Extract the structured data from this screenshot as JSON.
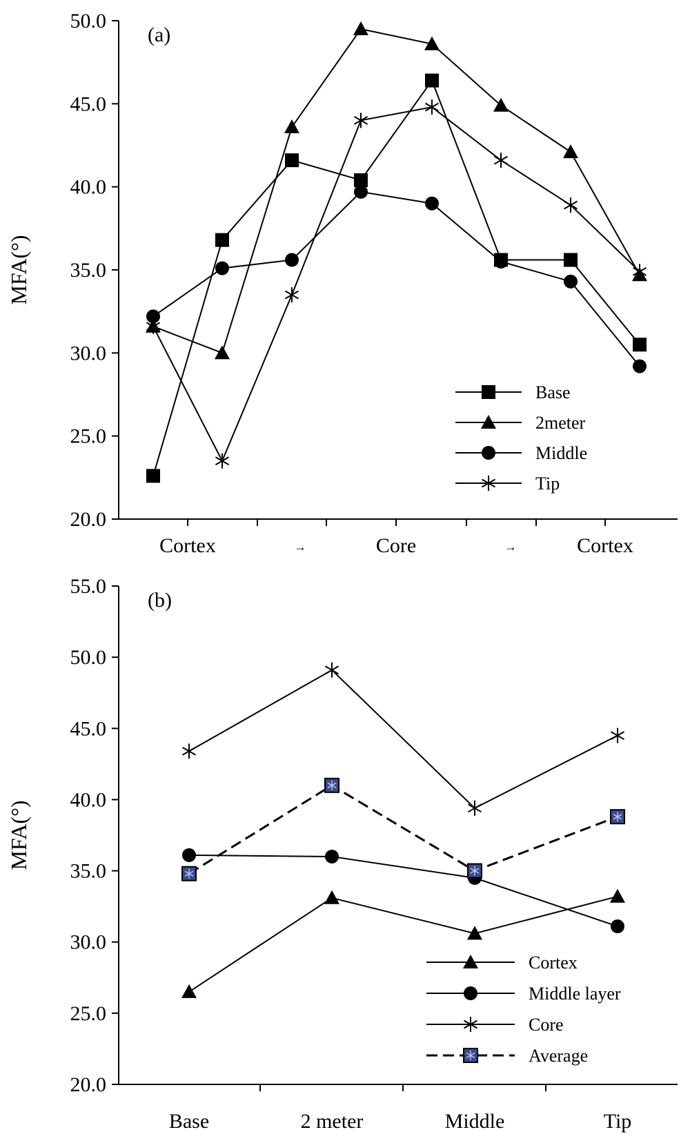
{
  "chart_data": [
    {
      "type": "line",
      "panel_label": "(a)",
      "ylabel": "MFA(°)",
      "ylim": [
        20.0,
        50.0
      ],
      "y_ticks": [
        "20.0",
        "25.0",
        "30.0",
        "35.0",
        "40.0",
        "45.0",
        "50.0"
      ],
      "x_labels": [
        "Cortex",
        "→",
        "Core",
        "→",
        "Cortex"
      ],
      "legend_position": "lower-right",
      "series": [
        {
          "name": "Base",
          "marker": "square",
          "values": [
            22.6,
            36.8,
            41.6,
            40.4,
            46.4,
            35.6,
            35.6,
            30.5
          ]
        },
        {
          "name": "2meter",
          "marker": "triangle",
          "values": [
            31.6,
            30.0,
            43.6,
            49.5,
            48.6,
            44.9,
            42.1,
            34.7
          ]
        },
        {
          "name": "Middle",
          "marker": "circle",
          "values": [
            32.2,
            35.1,
            35.6,
            39.7,
            39.0,
            35.5,
            34.3,
            29.2
          ]
        },
        {
          "name": "Tip",
          "marker": "asterisk",
          "values": [
            31.6,
            23.5,
            33.5,
            44.0,
            44.8,
            41.6,
            38.9,
            34.9
          ]
        }
      ]
    },
    {
      "type": "line",
      "panel_label": "(b)",
      "ylabel": "MFA(°)",
      "ylim": [
        20.0,
        55.0
      ],
      "y_ticks": [
        "20.0",
        "25.0",
        "30.0",
        "35.0",
        "40.0",
        "45.0",
        "50.0",
        "55.0"
      ],
      "categories": [
        "Base",
        "2 meter",
        "Middle",
        "Tip"
      ],
      "legend_position": "lower-right",
      "series": [
        {
          "name": "Cortex",
          "marker": "triangle",
          "dashed": false,
          "values": [
            26.5,
            33.1,
            30.6,
            33.2
          ]
        },
        {
          "name": "Middle layer",
          "marker": "circle",
          "dashed": false,
          "values": [
            36.1,
            36.0,
            34.5,
            31.1
          ]
        },
        {
          "name": "Core",
          "marker": "asterisk",
          "dashed": false,
          "values": [
            43.4,
            49.1,
            39.4,
            44.5
          ]
        },
        {
          "name": "Average",
          "marker": "boxed-asterisk",
          "dashed": true,
          "values": [
            34.8,
            41.0,
            35.0,
            38.8
          ]
        }
      ]
    }
  ]
}
